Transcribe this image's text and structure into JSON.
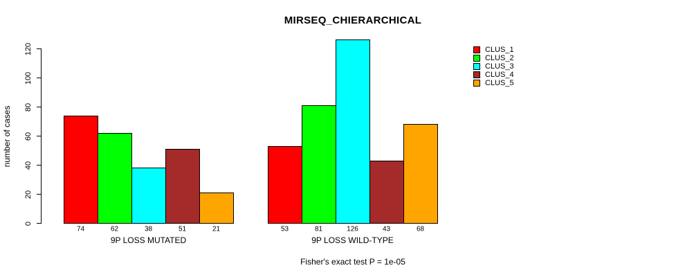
{
  "chart_data": {
    "type": "bar",
    "title": "MIRSEQ_CHIERARCHICAL",
    "ylabel": "number of cases",
    "footnote": "Fisher's exact test P = 1e-05",
    "ylim": [
      0,
      126
    ],
    "yticks": [
      0,
      20,
      40,
      60,
      80,
      100,
      120
    ],
    "grid": false,
    "legend_position": "right",
    "series": [
      {
        "name": "CLUS_1",
        "color": "#FF0000"
      },
      {
        "name": "CLUS_2",
        "color": "#00FF00"
      },
      {
        "name": "CLUS_3",
        "color": "#00FFFF"
      },
      {
        "name": "CLUS_4",
        "color": "#A52A2A"
      },
      {
        "name": "CLUS_5",
        "color": "#FFA500"
      }
    ],
    "groups": [
      {
        "label": "9P LOSS MUTATED",
        "values": [
          74,
          62,
          38,
          51,
          21
        ]
      },
      {
        "label": "9P LOSS WILD-TYPE",
        "values": [
          53,
          81,
          126,
          43,
          68
        ]
      }
    ]
  }
}
